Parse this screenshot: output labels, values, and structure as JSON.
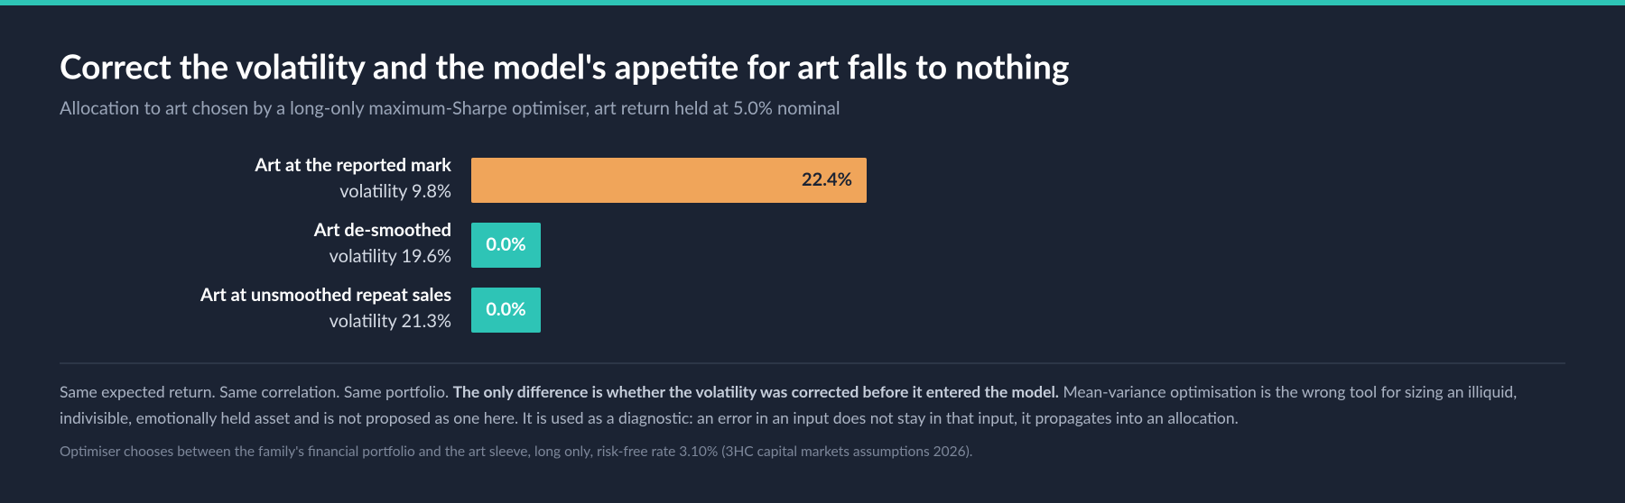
{
  "chart_data": {
    "type": "bar",
    "title": "Correct the volatility and the model's appetite for art falls to nothing",
    "subtitle": "Allocation to art chosen by a long-only maximum-Sharpe optimiser, art return held at 5.0% nominal",
    "categories": [
      "Art at the reported mark",
      "Art de-smoothed",
      "Art at unsmoothed repeat sales"
    ],
    "sublabels": [
      "volatility 9.8%",
      "volatility 19.6%",
      "volatility 21.3%"
    ],
    "values": [
      22.4,
      0.0,
      0.0
    ],
    "value_labels": [
      "22.4%",
      "0.0%",
      "0.0%"
    ],
    "colors": [
      "#f0a55a",
      "#2ec4b6",
      "#2ec4b6"
    ]
  },
  "notes": {
    "text_before": "Same expected return. Same correlation. Same portfolio. ",
    "bold": "The only difference is whether the volatility was corrected before it entered the model.",
    "text_after": " Mean-variance optimisation is the wrong tool for sizing an illiquid, indivisible, emotionally held asset and is not proposed as one here. It is used as a diagnostic: an error in an input does not stay in that input, it propagates into an allocation."
  },
  "footnote": "Optimiser chooses between the family's financial portfolio and the art sleeve, long only, risk-free rate 3.10% (3HC capital markets assumptions 2026)."
}
